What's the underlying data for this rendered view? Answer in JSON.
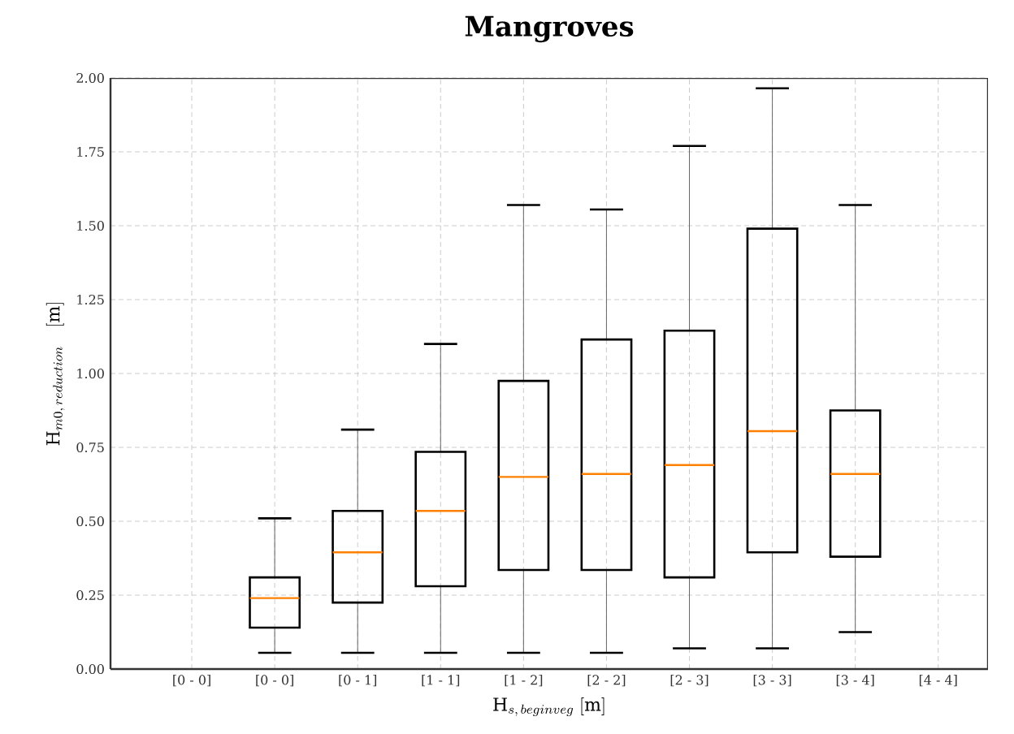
{
  "chart_data": {
    "type": "box",
    "title": "Mangroves",
    "xlabel": "\\mathrm{H}_{s,\\,beginveg}\\;[\\mathrm{m}]",
    "ylabel": "\\mathrm{H}_{m0,\\,reduction}\\quad[\\mathrm{m}]",
    "categories": [
      "[0 - 0]",
      "[0 - 0]",
      "[0 - 1]",
      "[1 - 1]",
      "[1 - 2]",
      "[2 - 2]",
      "[2 - 3]",
      "[3 - 3]",
      "[3 - 4]",
      "[4 - 4]"
    ],
    "series": [
      {
        "color": "#000000",
        "boxes": [
          null,
          {
            "low": 0.055,
            "q1": 0.14,
            "median": 0.24,
            "q3": 0.31,
            "high": 0.51
          },
          {
            "low": 0.055,
            "q1": 0.225,
            "median": 0.395,
            "q3": 0.535,
            "high": 0.81
          },
          {
            "low": 0.055,
            "q1": 0.28,
            "median": 0.535,
            "q3": 0.735,
            "high": 1.1
          },
          {
            "low": 0.055,
            "q1": 0.335,
            "median": 0.65,
            "q3": 0.975,
            "high": 1.57
          },
          {
            "low": 0.055,
            "q1": 0.335,
            "median": 0.66,
            "q3": 1.115,
            "high": 1.555
          },
          {
            "low": 0.07,
            "q1": 0.31,
            "median": 0.69,
            "q3": 1.145,
            "high": 1.77
          },
          {
            "low": 0.07,
            "q1": 0.395,
            "median": 0.805,
            "q3": 1.49,
            "high": 1.965
          },
          {
            "low": 0.125,
            "q1": 0.38,
            "median": 0.66,
            "q3": 0.875,
            "high": 1.57
          },
          null
        ]
      }
    ],
    "ylim": [
      0,
      2.0
    ],
    "yticks": [
      {
        "value": 0,
        "label": "0.00"
      },
      {
        "value": 0.25,
        "label": "0.25"
      },
      {
        "value": 0.5,
        "label": "0.50"
      },
      {
        "value": 0.75,
        "label": "0.75"
      },
      {
        "value": 1.0,
        "label": "1.00"
      },
      {
        "value": 1.25,
        "label": "1.25"
      },
      {
        "value": 1.5,
        "label": "1.50"
      },
      {
        "value": 1.75,
        "label": "1.75"
      },
      {
        "value": 2.0,
        "label": "2.00"
      }
    ],
    "grid": true
  }
}
